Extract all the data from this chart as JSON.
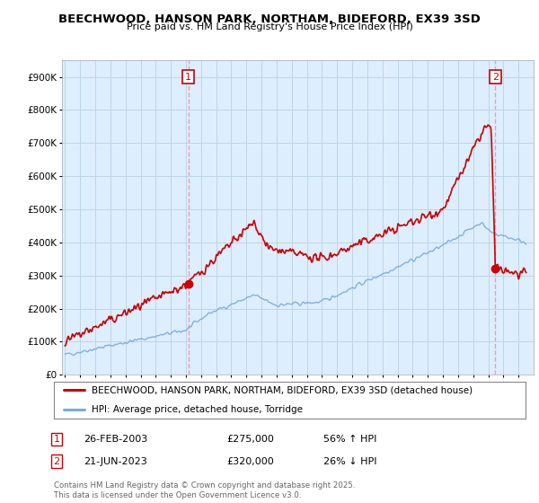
{
  "title": "BEECHWOOD, HANSON PARK, NORTHAM, BIDEFORD, EX39 3SD",
  "subtitle": "Price paid vs. HM Land Registry's House Price Index (HPI)",
  "ylim": [
    0,
    950000
  ],
  "yticks": [
    0,
    100000,
    200000,
    300000,
    400000,
    500000,
    600000,
    700000,
    800000,
    900000
  ],
  "ytick_labels": [
    "£0",
    "£100K",
    "£200K",
    "£300K",
    "£400K",
    "£500K",
    "£600K",
    "£700K",
    "£800K",
    "£900K"
  ],
  "sale1_date": 2003.15,
  "sale1_price": 275000,
  "sale2_date": 2023.47,
  "sale2_price": 320000,
  "sale1_label": "1",
  "sale2_label": "2",
  "legend_line1": "BEECHWOOD, HANSON PARK, NORTHAM, BIDEFORD, EX39 3SD (detached house)",
  "legend_line2": "HPI: Average price, detached house, Torridge",
  "footer": "Contains HM Land Registry data © Crown copyright and database right 2025.\nThis data is licensed under the Open Government Licence v3.0.",
  "line_color_red": "#cc0000",
  "line_color_blue": "#7aaadd",
  "plot_bg_color": "#ddeeff",
  "background_color": "#ffffff",
  "grid_color": "#c0d4e8"
}
